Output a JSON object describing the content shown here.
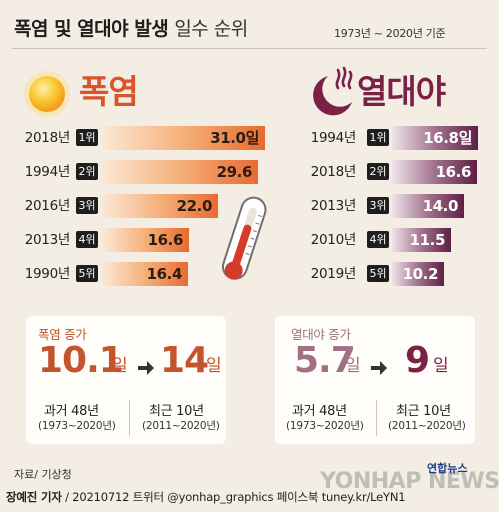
{
  "title": {
    "main": "폭염 및 열대야 발생",
    "sub": "일수 순위"
  },
  "basis": "1973년 ~ 2020년 기준",
  "heatwave": {
    "title": "폭염",
    "rows": [
      {
        "year": "2018년",
        "rank": "1위",
        "value_text": "31.0일"
      },
      {
        "year": "1994년",
        "rank": "2위",
        "value_text": "29.6"
      },
      {
        "year": "2016년",
        "rank": "3위",
        "value_text": "22.0"
      },
      {
        "year": "2013년",
        "rank": "4위",
        "value_text": "16.6"
      },
      {
        "year": "1990년",
        "rank": "5위",
        "value_text": "16.4"
      }
    ]
  },
  "tropical_night": {
    "title": "열대야",
    "rows": [
      {
        "year": "1994년",
        "rank": "1위",
        "value_text": "16.8일"
      },
      {
        "year": "2018년",
        "rank": "2위",
        "value_text": "16.6"
      },
      {
        "year": "2013년",
        "rank": "3위",
        "value_text": "14.0"
      },
      {
        "year": "2010년",
        "rank": "4위",
        "value_text": "11.5"
      },
      {
        "year": "2019년",
        "rank": "5위",
        "value_text": "10.2"
      }
    ]
  },
  "increase": {
    "heatwave": {
      "label": "폭염 증가",
      "from": "10.1",
      "to": "14",
      "unit": "일"
    },
    "tropical_night": {
      "label": "열대야 증가",
      "from": "5.7",
      "to": "9",
      "unit": "일"
    },
    "period_past": {
      "label": "과거 48년",
      "range": "(1973~2020년)"
    },
    "period_recent": {
      "label": "최근 10년",
      "range": "(2011~2020년)"
    }
  },
  "source": "자료/ 기상청",
  "credit": {
    "author": "장예진 기자",
    "rest": " / 20210712 트위터 @yonhap_graphics  페이스북 tuney.kr/LeYN1"
  },
  "logo_text": "연합뉴스",
  "watermark": "YONHAP NEWS",
  "colors": {
    "heat_accent": "#d9542a",
    "night_accent": "#7a2145",
    "heat_number": "#c2542e",
    "night_number": "#a26f84"
  },
  "chart_data": [
    {
      "type": "bar",
      "title": "폭염",
      "categories": [
        "2018년",
        "1994년",
        "2016년",
        "2013년",
        "1990년"
      ],
      "values": [
        31.0,
        29.6,
        22.0,
        16.6,
        16.4
      ],
      "xlim": [
        0,
        31.0
      ]
    },
    {
      "type": "bar",
      "title": "열대야",
      "categories": [
        "1994년",
        "2018년",
        "2013년",
        "2010년",
        "2019년"
      ],
      "values": [
        16.8,
        16.6,
        14.0,
        11.5,
        10.2
      ],
      "xlim": [
        0,
        16.8
      ]
    }
  ]
}
